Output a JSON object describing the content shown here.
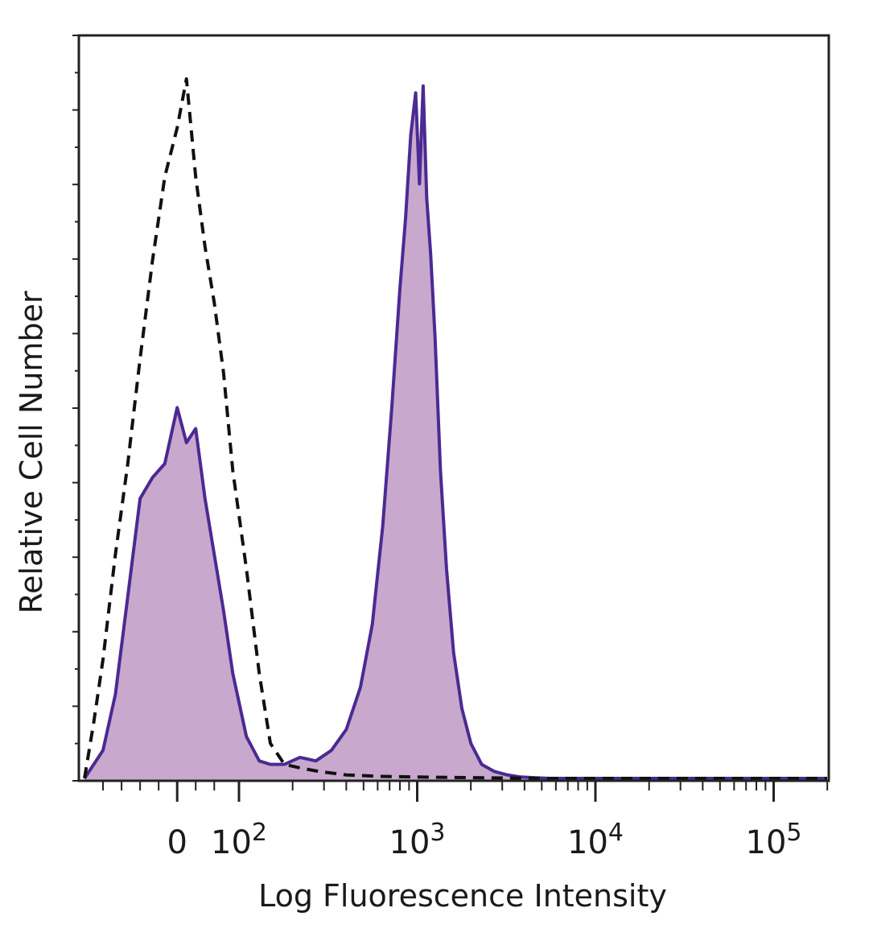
{
  "chart_data": {
    "type": "area",
    "xlabel": "Log Fluorescence Intensity",
    "ylabel": "Relative Cell Number",
    "x_scale": "biexponential (linear near 0, log above 10^2)",
    "xlim": [
      -150,
      200000
    ],
    "ylim": [
      0,
      1.0
    ],
    "grid": false,
    "x_ticks": [
      {
        "value": 0,
        "base": "0",
        "exp": ""
      },
      {
        "value": 100,
        "base": "10",
        "exp": "2"
      },
      {
        "value": 1000,
        "base": "10",
        "exp": "3"
      },
      {
        "value": 10000,
        "base": "10",
        "exp": "4"
      },
      {
        "value": 100000,
        "base": "10",
        "exp": "5"
      }
    ],
    "colors": {
      "stained_fill": "#c8a9cd",
      "stained_line": "#4b2a93",
      "control_line": "#111111",
      "frame": "#222222"
    },
    "series": [
      {
        "style": "solid-filled",
        "x": [
          -150,
          -120,
          -100,
          -80,
          -60,
          -40,
          -20,
          0,
          15,
          30,
          45,
          60,
          75,
          90,
          110,
          130,
          150,
          180,
          220,
          270,
          330,
          400,
          480,
          560,
          640,
          720,
          800,
          860,
          920,
          980,
          1030,
          1080,
          1130,
          1190,
          1260,
          1350,
          1460,
          1600,
          1780,
          2000,
          2300,
          2700,
          3200,
          3800,
          4500,
          5500,
          7000,
          10000,
          20000,
          50000,
          100000,
          200000
        ],
        "y": [
          0.0,
          0.04,
          0.12,
          0.26,
          0.4,
          0.43,
          0.45,
          0.53,
          0.48,
          0.5,
          0.4,
          0.32,
          0.24,
          0.15,
          0.06,
          0.025,
          0.02,
          0.02,
          0.03,
          0.025,
          0.04,
          0.07,
          0.13,
          0.22,
          0.36,
          0.53,
          0.7,
          0.8,
          0.92,
          0.98,
          0.85,
          0.99,
          0.83,
          0.75,
          0.63,
          0.44,
          0.3,
          0.18,
          0.1,
          0.05,
          0.02,
          0.01,
          0.005,
          0.002,
          0.001,
          0.0,
          0.0,
          0.0,
          0.0,
          0.0,
          0.0,
          0.0
        ]
      },
      {
        "style": "dashed",
        "x": [
          -150,
          -135,
          -120,
          -100,
          -80,
          -60,
          -40,
          -20,
          0,
          15,
          30,
          45,
          60,
          75,
          90,
          110,
          130,
          150,
          180,
          220,
          280,
          400,
          600,
          1000,
          2000,
          5000,
          10000,
          50000,
          200000
        ],
        "y": [
          0.0,
          0.08,
          0.17,
          0.32,
          0.45,
          0.6,
          0.74,
          0.86,
          0.93,
          1.0,
          0.86,
          0.76,
          0.68,
          0.58,
          0.44,
          0.3,
          0.15,
          0.05,
          0.02,
          0.015,
          0.01,
          0.005,
          0.003,
          0.002,
          0.001,
          0.0,
          0.0,
          0.0,
          0.0
        ]
      }
    ]
  }
}
